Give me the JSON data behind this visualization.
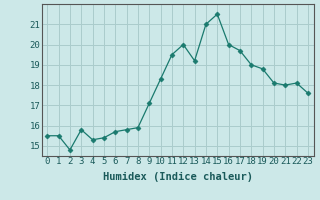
{
  "x": [
    0,
    1,
    2,
    3,
    4,
    5,
    6,
    7,
    8,
    9,
    10,
    11,
    12,
    13,
    14,
    15,
    16,
    17,
    18,
    19,
    20,
    21,
    22,
    23
  ],
  "y": [
    15.5,
    15.5,
    14.8,
    15.8,
    15.3,
    15.4,
    15.7,
    15.8,
    15.9,
    17.1,
    18.3,
    19.5,
    20.0,
    19.2,
    21.0,
    21.5,
    20.0,
    19.7,
    19.0,
    18.8,
    18.1,
    18.0,
    18.1,
    17.6
  ],
  "line_color": "#1a7a6e",
  "marker": "D",
  "marker_size": 2.5,
  "bg_color": "#cce8e8",
  "grid_color": "#aacccc",
  "xlabel": "Humidex (Indice chaleur)",
  "ylim": [
    14.5,
    22.0
  ],
  "xlim": [
    -0.5,
    23.5
  ],
  "yticks": [
    15,
    16,
    17,
    18,
    19,
    20,
    21
  ],
  "xticks": [
    0,
    1,
    2,
    3,
    4,
    5,
    6,
    7,
    8,
    9,
    10,
    11,
    12,
    13,
    14,
    15,
    16,
    17,
    18,
    19,
    20,
    21,
    22,
    23
  ],
  "xlabel_fontsize": 7.5,
  "tick_fontsize": 6.5
}
